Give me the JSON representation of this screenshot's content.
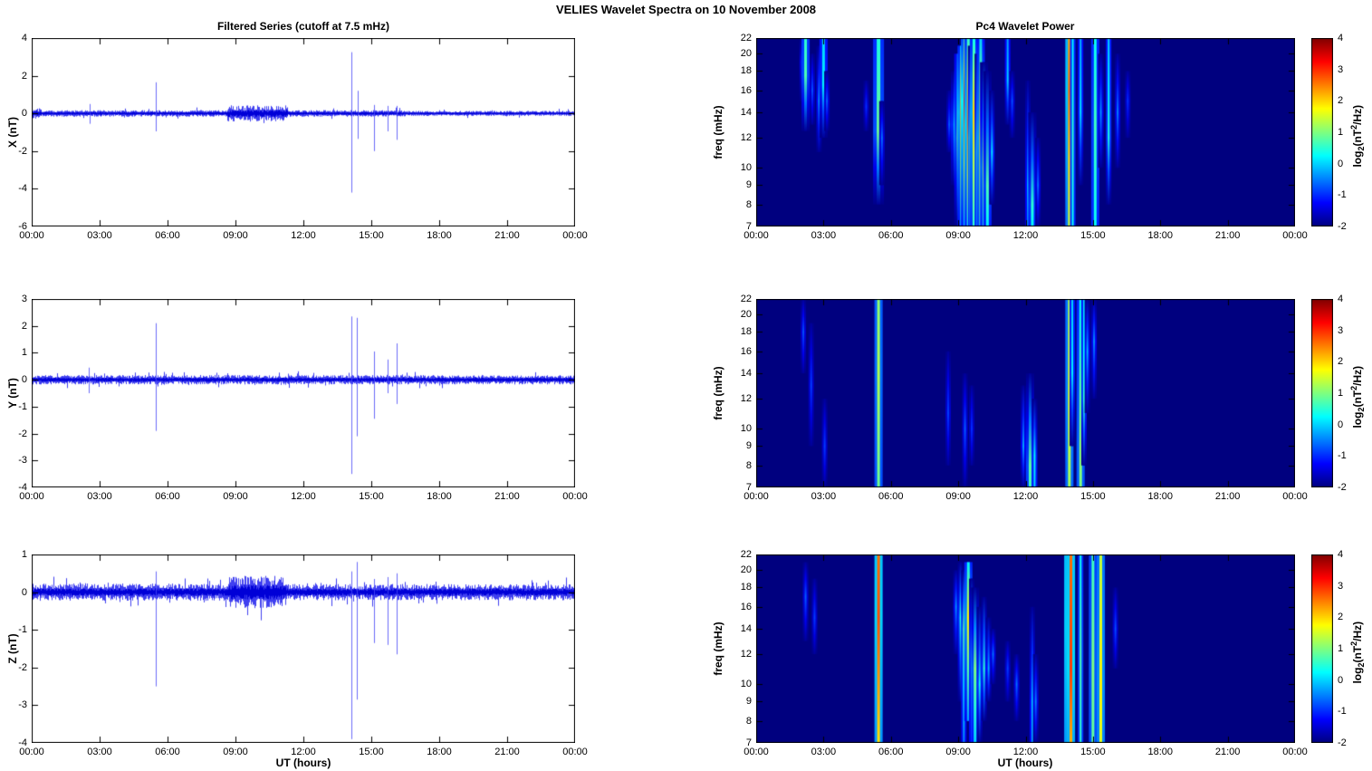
{
  "title": "VELIES Wavelet Spectra on 10 November  2008",
  "left_column_title": "Filtered Series (cutoff at 7.5 mHz)",
  "right_column_title": "Pc4 Wavelet Power",
  "x_axis": {
    "label": "UT (hours)",
    "range_hours": [
      0,
      24
    ],
    "tick_hours": [
      0,
      3,
      6,
      9,
      12,
      15,
      18,
      21,
      24
    ],
    "tick_labels": [
      "00:00",
      "03:00",
      "06:00",
      "09:00",
      "12:00",
      "15:00",
      "18:00",
      "21:00",
      "00:00"
    ]
  },
  "colorbar": {
    "range": [
      -2,
      4
    ],
    "ticks": [
      4,
      3,
      2,
      1,
      0,
      -1,
      -2
    ],
    "label_parts": {
      "pre": "log",
      "sub": "2",
      "mid": "(nT",
      "sup": "2",
      "post": "/Hz)"
    }
  },
  "colors": {
    "series_line": "#0000EE",
    "heatmap_background_hex": "#00007F",
    "frame": "#000000"
  },
  "chart_data": [
    {
      "id": "series-x",
      "type": "line",
      "row": 0,
      "col": "left",
      "ylabel": "X (nT)",
      "ylim": [
        -6,
        4
      ],
      "yticks": [
        4,
        2,
        0,
        -2,
        -4,
        -6
      ],
      "grid": false,
      "seed": 101,
      "noise_segments": [
        {
          "t0": 0,
          "t1": 0.4,
          "amp": 0.22
        },
        {
          "t0": 0.4,
          "t1": 8.6,
          "amp": 0.13
        },
        {
          "t0": 8.6,
          "t1": 11.3,
          "amp": 0.32
        },
        {
          "t0": 11.3,
          "t1": 16.5,
          "amp": 0.13
        },
        {
          "t0": 16.5,
          "t1": 24,
          "amp": 0.1
        }
      ],
      "spikes": [
        {
          "t": 2.55,
          "up": 0.5,
          "down": -0.55
        },
        {
          "t": 5.48,
          "up": 1.65,
          "down": -0.95
        },
        {
          "t": 14.1,
          "up": 3.25,
          "down": -4.2
        },
        {
          "t": 14.4,
          "up": 1.2,
          "down": -1.35
        },
        {
          "t": 15.1,
          "up": 0.45,
          "down": -2.0
        },
        {
          "t": 15.7,
          "up": 0.4,
          "down": -0.95
        },
        {
          "t": 16.1,
          "up": 0.4,
          "down": -1.4
        }
      ]
    },
    {
      "id": "wavelet-x",
      "type": "heatmap",
      "row": 0,
      "col": "right",
      "ylabel": "freq (mHz)",
      "yscale": "log",
      "f_range": [
        7,
        22
      ],
      "yticks": [
        22,
        20,
        18,
        16,
        14,
        12,
        10,
        9,
        8,
        7
      ],
      "clim": [
        -2,
        4
      ],
      "background_value": -2,
      "streaks": [
        {
          "t": 2.05,
          "w": 2,
          "f1": 22,
          "f2": 15,
          "fp": 19,
          "v": -0.6
        },
        {
          "t": 2.2,
          "w": 3,
          "f1": 22,
          "f2": 12.5,
          "fp": 17.5,
          "v": 0.7,
          "vt": 0.5
        },
        {
          "t": 2.5,
          "w": 2,
          "f1": 20,
          "f2": 13,
          "fp": 16,
          "v": -0.8
        },
        {
          "t": 2.8,
          "w": 2,
          "f1": 21,
          "f2": 11,
          "fp": 15,
          "v": -0.3
        },
        {
          "t": 3.0,
          "w": 3,
          "f1": 22,
          "f2": 12,
          "fp": 16.5,
          "v": 0.2,
          "vt": 0.0
        },
        {
          "t": 3.15,
          "w": 2,
          "f1": 18,
          "f2": 12.5,
          "fp": 15,
          "v": -0.7
        },
        {
          "t": 4.9,
          "w": 2,
          "f1": 17,
          "f2": 12.5,
          "fp": 14.5,
          "v": -1.0
        },
        {
          "t": 5.45,
          "w": 4,
          "f1": 22,
          "f2": 8,
          "fp": 12.5,
          "v": 0.9,
          "vt": 0.4
        },
        {
          "t": 5.6,
          "w": 2,
          "f1": 15,
          "f2": 9,
          "fp": 12,
          "v": -0.6
        },
        {
          "t": 8.6,
          "w": 2,
          "f1": 16,
          "f2": 11,
          "fp": 13,
          "v": -0.7
        },
        {
          "t": 8.85,
          "w": 3,
          "f1": 18,
          "f2": 9,
          "fp": 13,
          "v": 0.3
        },
        {
          "t": 9.0,
          "w": 3,
          "f1": 20,
          "f2": 7,
          "fp": 12,
          "v": 0.9,
          "vt": -0.5
        },
        {
          "t": 9.15,
          "w": 3,
          "f1": 21,
          "f2": 7,
          "fp": 14,
          "v": 2.2,
          "vt": 0.2,
          "vb": 0.0
        },
        {
          "t": 9.3,
          "w": 3,
          "f1": 22,
          "f2": 7,
          "fp": 15,
          "v": 3.2,
          "vt": 0.8,
          "vb": 0.2
        },
        {
          "t": 9.45,
          "w": 3,
          "f1": 22,
          "f2": 7,
          "fp": 13,
          "v": 2.6,
          "vt": 0.5,
          "vb": 0.4
        },
        {
          "t": 9.55,
          "w": 2,
          "f1": 21,
          "f2": 7,
          "fp": 12,
          "v": 1.6,
          "vb": 0.3
        },
        {
          "t": 9.7,
          "w": 3,
          "f1": 22,
          "f2": 7,
          "fp": 14,
          "v": 2.0,
          "vt": 0.3,
          "vb": 0.5
        },
        {
          "t": 9.85,
          "w": 2,
          "f1": 20,
          "f2": 7,
          "fp": 11,
          "v": 1.0,
          "vb": 0.2
        },
        {
          "t": 10.0,
          "w": 3,
          "f1": 22,
          "f2": 7,
          "fp": 12,
          "v": 1.8,
          "vt": 0.0,
          "vb": 0.6
        },
        {
          "t": 10.15,
          "w": 3,
          "f1": 19,
          "f2": 7,
          "fp": 10,
          "v": 1.2,
          "vb": 0.4
        },
        {
          "t": 10.3,
          "w": 3,
          "f1": 18,
          "f2": 7,
          "fp": 9,
          "v": 0.7,
          "vb": 0.2
        },
        {
          "t": 10.5,
          "w": 2,
          "f1": 16,
          "f2": 8,
          "fp": 11,
          "v": 0.1
        },
        {
          "t": 11.2,
          "w": 2,
          "f1": 22,
          "f2": 13,
          "fp": 17,
          "v": 0.0,
          "vt": -0.3
        },
        {
          "t": 11.4,
          "w": 2,
          "f1": 18,
          "f2": 12,
          "fp": 15,
          "v": -0.8
        },
        {
          "t": 12.1,
          "w": 2,
          "f1": 17,
          "f2": 7,
          "fp": 9,
          "v": -0.2,
          "vb": -0.5
        },
        {
          "t": 12.3,
          "w": 3,
          "f1": 14,
          "f2": 7,
          "fp": 8,
          "v": 0.5,
          "vb": 0.2
        },
        {
          "t": 12.55,
          "w": 2,
          "f1": 12,
          "f2": 7,
          "fp": 9,
          "v": -0.6
        },
        {
          "t": 13.95,
          "w": 3,
          "f1": 22,
          "f2": 7,
          "fp": 16,
          "v": 2.6,
          "vt": 2.3,
          "vb": 1.4
        },
        {
          "t": 14.1,
          "w": 2,
          "f1": 22,
          "f2": 7,
          "fp": 12,
          "v": 0.5,
          "vt": 0.2,
          "vb": 0.3
        },
        {
          "t": 14.45,
          "w": 2,
          "f1": 22,
          "f2": 9,
          "fp": 14,
          "v": 0.1,
          "vt": -0.2
        },
        {
          "t": 15.1,
          "w": 3,
          "f1": 22,
          "f2": 7,
          "fp": 13,
          "v": 0.6,
          "vt": 0.3,
          "vb": 0.3
        },
        {
          "t": 15.35,
          "w": 2,
          "f1": 20,
          "f2": 10,
          "fp": 14,
          "v": -0.4
        },
        {
          "t": 15.7,
          "w": 2,
          "f1": 22,
          "f2": 8,
          "fp": 12,
          "v": 0.4,
          "vt": 0.0
        },
        {
          "t": 16.1,
          "w": 2,
          "f1": 20,
          "f2": 10,
          "fp": 14,
          "v": -0.5
        },
        {
          "t": 16.55,
          "w": 2,
          "f1": 18,
          "f2": 12,
          "fp": 15,
          "v": -1.0
        }
      ]
    },
    {
      "id": "series-y",
      "type": "line",
      "row": 1,
      "col": "left",
      "ylabel": "Y (nT)",
      "ylim": [
        -4,
        3
      ],
      "yticks": [
        3,
        2,
        1,
        0,
        -1,
        -2,
        -3,
        -4
      ],
      "grid": false,
      "seed": 202,
      "noise_segments": [
        {
          "t0": 0,
          "t1": 24,
          "amp": 0.13
        }
      ],
      "spikes": [
        {
          "t": 2.5,
          "up": 0.45,
          "down": -0.5
        },
        {
          "t": 5.48,
          "up": 2.1,
          "down": -1.9
        },
        {
          "t": 14.1,
          "up": 2.35,
          "down": -3.5
        },
        {
          "t": 14.35,
          "up": 2.3,
          "down": -2.1
        },
        {
          "t": 15.1,
          "up": 1.05,
          "down": -1.45
        },
        {
          "t": 15.7,
          "up": 0.75,
          "down": -0.5
        },
        {
          "t": 16.1,
          "up": 1.35,
          "down": -0.9
        }
      ]
    },
    {
      "id": "wavelet-y",
      "type": "heatmap",
      "row": 1,
      "col": "right",
      "ylabel": "freq (mHz)",
      "yscale": "log",
      "f_range": [
        7,
        22
      ],
      "yticks": [
        22,
        20,
        18,
        16,
        14,
        12,
        10,
        9,
        8,
        7
      ],
      "clim": [
        -2,
        4
      ],
      "background_value": -2,
      "streaks": [
        {
          "t": 2.1,
          "w": 2,
          "f1": 22,
          "f2": 14,
          "fp": 18,
          "v": -0.8
        },
        {
          "t": 2.45,
          "w": 2,
          "f1": 19,
          "f2": 9,
          "fp": 13,
          "v": -0.9
        },
        {
          "t": 3.05,
          "w": 2,
          "f1": 12,
          "f2": 7,
          "fp": 9,
          "v": -0.9
        },
        {
          "t": 5.45,
          "w": 3,
          "f1": 22,
          "f2": 7,
          "fp": 14,
          "v": 1.3,
          "vt": 1.1,
          "vb": 0.9
        },
        {
          "t": 8.55,
          "w": 2,
          "f1": 16,
          "f2": 8,
          "fp": 11,
          "v": -0.9
        },
        {
          "t": 9.3,
          "w": 2,
          "f1": 14,
          "f2": 7,
          "fp": 10,
          "v": -0.7
        },
        {
          "t": 9.6,
          "w": 2,
          "f1": 13,
          "f2": 8,
          "fp": 10,
          "v": -1.0
        },
        {
          "t": 11.9,
          "w": 2,
          "f1": 13,
          "f2": 7,
          "fp": 9,
          "v": -0.3
        },
        {
          "t": 12.2,
          "w": 3,
          "f1": 14,
          "f2": 7,
          "fp": 8,
          "v": 0.8,
          "vb": 0.6
        },
        {
          "t": 12.4,
          "w": 2,
          "f1": 12,
          "f2": 7,
          "fp": 8.5,
          "v": 0.2,
          "vb": 0.0
        },
        {
          "t": 13.95,
          "w": 3,
          "f1": 22,
          "f2": 7,
          "fp": 12,
          "v": 1.6,
          "vt": 1.3,
          "vb": 1.2
        },
        {
          "t": 14.08,
          "w": 2,
          "f1": 22,
          "f2": 9,
          "fp": 14,
          "v": 0.2,
          "vt": 0.0
        },
        {
          "t": 14.45,
          "w": 3,
          "f1": 22,
          "f2": 7,
          "fp": 9,
          "v": 1.1,
          "vt": 0.2,
          "vb": 1.0
        },
        {
          "t": 14.6,
          "w": 2,
          "f1": 22,
          "f2": 8,
          "fp": 12,
          "v": 0.5,
          "vt": 0.0
        },
        {
          "t": 14.75,
          "w": 2,
          "f1": 22,
          "f2": 11,
          "fp": 16,
          "v": -0.2
        },
        {
          "t": 15.05,
          "w": 2,
          "f1": 22,
          "f2": 12,
          "fp": 17,
          "v": -0.4
        }
      ]
    },
    {
      "id": "series-z",
      "type": "line",
      "row": 2,
      "col": "left",
      "ylabel": "Z (nT)",
      "ylim": [
        -4,
        1
      ],
      "yticks": [
        1,
        0,
        -1,
        -2,
        -3,
        -4
      ],
      "grid": false,
      "seed": 303,
      "noise_segments": [
        {
          "t0": 0,
          "t1": 8.7,
          "amp": 0.17
        },
        {
          "t0": 8.7,
          "t1": 11.2,
          "amp": 0.32
        },
        {
          "t0": 11.2,
          "t1": 24,
          "amp": 0.16
        }
      ],
      "spikes": [
        {
          "t": 5.48,
          "up": 0.55,
          "down": -2.5
        },
        {
          "t": 14.1,
          "up": 0.55,
          "down": -3.9
        },
        {
          "t": 14.35,
          "up": 0.8,
          "down": -2.85
        },
        {
          "t": 15.1,
          "up": 0.35,
          "down": -1.35
        },
        {
          "t": 15.7,
          "up": 0.4,
          "down": -1.4
        },
        {
          "t": 16.1,
          "up": 0.5,
          "down": -1.65
        }
      ]
    },
    {
      "id": "wavelet-z",
      "type": "heatmap",
      "row": 2,
      "col": "right",
      "ylabel": "freq (mHz)",
      "yscale": "log",
      "f_range": [
        7,
        22
      ],
      "yticks": [
        22,
        20,
        18,
        16,
        14,
        12,
        10,
        9,
        8,
        7
      ],
      "clim": [
        -2,
        4
      ],
      "background_value": -2,
      "streaks": [
        {
          "t": 2.2,
          "w": 2,
          "f1": 21,
          "f2": 13,
          "fp": 17,
          "v": -0.7
        },
        {
          "t": 2.6,
          "w": 2,
          "f1": 19,
          "f2": 12,
          "fp": 15,
          "v": -0.9
        },
        {
          "t": 5.45,
          "w": 3,
          "f1": 22,
          "f2": 7,
          "fp": 15,
          "v": 2.8,
          "vt": 2.6,
          "vb": 1.9
        },
        {
          "t": 8.9,
          "w": 2,
          "f1": 20,
          "f2": 12,
          "fp": 16,
          "v": -0.4
        },
        {
          "t": 9.1,
          "w": 2,
          "f1": 21,
          "f2": 9,
          "fp": 15,
          "v": 0.4
        },
        {
          "t": 9.25,
          "w": 2,
          "f1": 20,
          "f2": 7,
          "fp": 14,
          "v": 0.8,
          "vb": -0.5
        },
        {
          "t": 9.45,
          "w": 3,
          "f1": 21,
          "f2": 8,
          "fp": 15,
          "v": 1.8,
          "vt": 0.2,
          "vb": -0.3
        },
        {
          "t": 9.6,
          "w": 2,
          "f1": 19,
          "f2": 7,
          "fp": 12,
          "v": 0.6,
          "vb": -0.4
        },
        {
          "t": 9.75,
          "w": 3,
          "f1": 18,
          "f2": 7,
          "fp": 11,
          "v": 1.0,
          "vb": 0.0
        },
        {
          "t": 9.95,
          "w": 2,
          "f1": 16,
          "f2": 7,
          "fp": 10,
          "v": 0.3
        },
        {
          "t": 10.15,
          "w": 2,
          "f1": 17,
          "f2": 8,
          "fp": 11,
          "v": 0.5
        },
        {
          "t": 10.35,
          "w": 2,
          "f1": 15,
          "f2": 9,
          "fp": 11,
          "v": -0.2
        },
        {
          "t": 10.55,
          "w": 2,
          "f1": 14,
          "f2": 10,
          "fp": 12,
          "v": -0.6
        },
        {
          "t": 11.2,
          "w": 2,
          "f1": 13,
          "f2": 9,
          "fp": 11,
          "v": -0.9
        },
        {
          "t": 11.6,
          "w": 2,
          "f1": 12,
          "f2": 8,
          "fp": 10,
          "v": -0.6
        },
        {
          "t": 12.3,
          "w": 2,
          "f1": 16,
          "f2": 7,
          "fp": 9,
          "v": -0.1,
          "vb": -0.3
        },
        {
          "t": 12.45,
          "w": 2,
          "f1": 12,
          "f2": 7,
          "fp": 9,
          "v": -0.5
        },
        {
          "t": 13.9,
          "w": 3,
          "f1": 22,
          "f2": 7,
          "fp": 14,
          "v": 2.7,
          "vt": 2.5,
          "vb": 2.0
        },
        {
          "t": 14.02,
          "w": 3,
          "f1": 22,
          "f2": 7,
          "fp": 11,
          "v": 2.9,
          "vt": 2.6,
          "vb": 2.2
        },
        {
          "t": 14.45,
          "w": 2,
          "f1": 22,
          "f2": 7,
          "fp": 12,
          "v": 0.7,
          "vt": 0.3,
          "vb": 0.5
        },
        {
          "t": 15.0,
          "w": 3,
          "f1": 22,
          "f2": 7,
          "fp": 11,
          "v": 1.0,
          "vt": 0.6,
          "vb": 0.8
        },
        {
          "t": 15.35,
          "w": 3,
          "f1": 22,
          "f2": 7,
          "fp": 10,
          "v": 1.8,
          "vt": 1.4,
          "vb": 1.6
        },
        {
          "t": 16.0,
          "w": 2,
          "f1": 18,
          "f2": 11,
          "fp": 14,
          "v": -0.8
        }
      ]
    }
  ]
}
